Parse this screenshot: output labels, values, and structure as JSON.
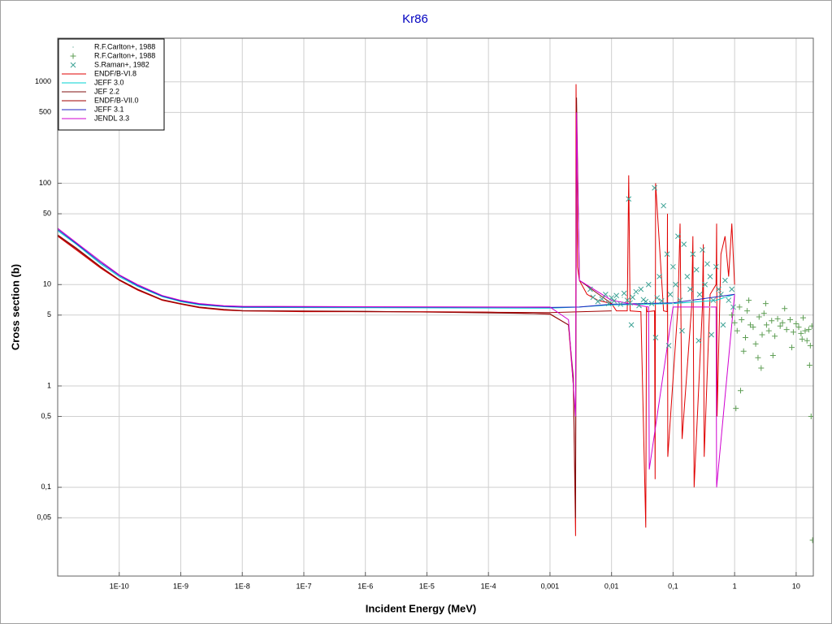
{
  "chart_data": {
    "type": "line",
    "title": "Kr86",
    "x_label": "Incident Energy (MeV)",
    "y_label": "Cross section (b)",
    "xscale": "log",
    "yscale": "log",
    "grid": true,
    "legend": "top-left",
    "xlim": [
      1e-11,
      19
    ],
    "ylim": [
      0.0133,
      2700
    ],
    "xticks": [
      {
        "value": 1e-10,
        "label": "1E-10"
      },
      {
        "value": 1e-09,
        "label": "1E-9"
      },
      {
        "value": 1e-08,
        "label": "1E-8"
      },
      {
        "value": 1e-07,
        "label": "1E-7"
      },
      {
        "value": 1e-06,
        "label": "1E-6"
      },
      {
        "value": 1e-05,
        "label": "1E-5"
      },
      {
        "value": 0.0001,
        "label": "1E-4"
      },
      {
        "value": 0.001,
        "label": "0,001"
      },
      {
        "value": 0.01,
        "label": "0,01"
      },
      {
        "value": 0.1,
        "label": "0,1"
      },
      1,
      10
    ],
    "yticks": [
      {
        "value": 0.05,
        "label": "0,05"
      },
      {
        "value": 0.1,
        "label": "0,1"
      },
      {
        "value": 0.5,
        "label": "0,5"
      },
      1,
      5,
      10,
      50,
      100,
      500,
      1000
    ],
    "series": [
      {
        "name": "R.F.Carlton+, 1988",
        "type": "scatter",
        "marker": "dot",
        "color": "#b8d8d0",
        "x": [
          0.006,
          0.009,
          0.015,
          0.03,
          0.06,
          0.1,
          0.2,
          0.4,
          0.7
        ],
        "values": [
          7,
          6.5,
          7.5,
          6,
          7,
          6.5,
          7,
          6,
          7.5
        ]
      },
      {
        "name": "R.F.Carlton+, 1988",
        "type": "scatter",
        "marker": "plus",
        "color": "#5f9e55",
        "x": [
          0.9,
          1.0,
          1.1,
          1.2,
          1.3,
          1.5,
          1.6,
          1.8,
          2.0,
          2.2,
          2.5,
          2.8,
          3.0,
          3.3,
          3.6,
          4.0,
          4.5,
          5.0,
          5.5,
          6.0,
          7.0,
          8.0,
          9.0,
          10,
          11,
          12,
          13,
          14,
          15,
          16,
          17,
          18,
          1.05,
          1.4,
          1.7,
          2.4,
          3.2,
          4.2,
          6.5,
          8.5,
          12.5,
          16.5,
          17.5,
          18.5,
          1.25,
          2.7
        ],
        "values": [
          5,
          4.2,
          3.5,
          6,
          4.5,
          3,
          5.5,
          4,
          3.8,
          2.6,
          4.8,
          3.2,
          5.2,
          4,
          3.5,
          4.4,
          3.1,
          4.6,
          3.9,
          4.2,
          3.6,
          4.5,
          3.4,
          4.1,
          3.8,
          3.3,
          4.7,
          3.5,
          2.8,
          3.6,
          2.5,
          3.9,
          0.6,
          2.2,
          7,
          1.9,
          6.5,
          2,
          5.8,
          2.4,
          2.9,
          1.6,
          0.5,
          0.03,
          0.9,
          1.5
        ]
      },
      {
        "name": "S.Raman+, 1982",
        "type": "scatter",
        "marker": "x",
        "color": "#3fa396",
        "x": [
          0.0045,
          0.005,
          0.006,
          0.007,
          0.008,
          0.009,
          0.01,
          0.011,
          0.012,
          0.014,
          0.016,
          0.018,
          0.019,
          0.02,
          0.022,
          0.025,
          0.028,
          0.03,
          0.033,
          0.036,
          0.04,
          0.045,
          0.05,
          0.055,
          0.06,
          0.065,
          0.07,
          0.08,
          0.09,
          0.1,
          0.11,
          0.12,
          0.13,
          0.15,
          0.17,
          0.19,
          0.21,
          0.24,
          0.27,
          0.3,
          0.33,
          0.36,
          0.4,
          0.45,
          0.5,
          0.55,
          0.6,
          0.7,
          0.8,
          0.9,
          0.95,
          0.052,
          0.021,
          0.085,
          0.14,
          0.26,
          0.42,
          0.65
        ],
        "values": [
          9,
          7.5,
          6.8,
          7.2,
          8,
          6.5,
          7.4,
          6.9,
          7.8,
          6.4,
          8.2,
          7,
          70,
          6.6,
          7.5,
          8.5,
          6.2,
          9,
          7.1,
          6.8,
          10,
          6.5,
          90,
          7.4,
          12,
          6.9,
          60,
          20,
          8,
          15,
          10,
          30,
          7,
          25,
          12,
          9,
          20,
          14,
          8,
          22,
          10,
          16,
          12,
          7,
          15,
          9,
          8,
          11,
          7,
          9,
          6,
          3,
          4,
          2.5,
          3.5,
          2.8,
          3.2,
          4
        ]
      },
      {
        "name": "ENDF/B-VI.8",
        "type": "line",
        "color": "#e00000",
        "x": [
          1e-11,
          2e-11,
          5e-11,
          1e-10,
          2e-10,
          5e-10,
          1e-09,
          2e-09,
          5e-09,
          1e-08,
          1e-07,
          1e-06,
          1e-05,
          0.0001,
          0.001,
          0.002,
          0.0024,
          0.0026,
          0.00265,
          0.0027,
          0.00275,
          0.0028,
          0.003,
          0.004,
          0.006,
          0.01,
          0.012,
          0.018,
          0.019,
          0.02,
          0.03,
          0.036,
          0.037,
          0.038,
          0.05,
          0.051,
          0.052,
          0.07,
          0.08,
          0.081,
          0.082,
          0.12,
          0.13,
          0.14,
          0.2,
          0.21,
          0.22,
          0.3,
          0.31,
          0.32,
          0.4,
          0.5,
          0.51,
          0.52,
          0.6,
          0.7,
          0.8,
          0.9,
          1
        ],
        "values": [
          30,
          22,
          14.5,
          11,
          8.8,
          7,
          6.4,
          5.9,
          5.6,
          5.5,
          5.4,
          5.4,
          5.4,
          5.35,
          5.1,
          4,
          1,
          0.033,
          950,
          180,
          60,
          15,
          11,
          8,
          7,
          6.5,
          5.5,
          5.5,
          120,
          5.5,
          5.4,
          0.04,
          6,
          5.4,
          5.5,
          0.12,
          100,
          5.5,
          5.4,
          50,
          0.2,
          6,
          40,
          0.3,
          6,
          30,
          0.1,
          6,
          25,
          0.2,
          8,
          10,
          40,
          0.5,
          20,
          30,
          12,
          40,
          10
        ]
      },
      {
        "name": "JEFF 3.0",
        "type": "line",
        "color": "#00d0d0",
        "x": [
          1e-11,
          2e-11,
          5e-11,
          1e-10,
          2e-10,
          5e-10,
          1e-09,
          2e-09,
          5e-09,
          1e-08,
          1e-06,
          0.001,
          0.003,
          0.01,
          0.1,
          0.5,
          1
        ],
        "values": [
          34,
          25,
          16,
          12,
          9.6,
          7.6,
          6.8,
          6.3,
          6.05,
          5.95,
          5.9,
          5.85,
          6,
          6.3,
          6.5,
          7,
          8
        ]
      },
      {
        "name": "JEF 2.2",
        "type": "line",
        "color": "#801010",
        "x": [
          1e-11,
          2e-11,
          5e-11,
          1e-10,
          2e-10,
          5e-10,
          1e-09,
          2e-09,
          5e-09,
          1e-08,
          1e-06,
          0.001,
          0.002,
          0.0024,
          0.0026,
          0.0027,
          0.003,
          0.01
        ],
        "values": [
          31,
          23,
          15,
          11.2,
          9,
          7.1,
          6.5,
          6,
          5.7,
          5.55,
          5.45,
          5.15,
          4,
          1.2,
          0.05,
          700,
          11,
          6.5
        ]
      },
      {
        "name": "ENDF/B-VII.0",
        "type": "line",
        "color": "#a00000",
        "x": [
          1e-11,
          2e-11,
          5e-11,
          1e-10,
          2e-10,
          5e-10,
          1e-09,
          2e-09,
          5e-09,
          1e-08,
          1e-06,
          0.001,
          0.01
        ],
        "values": [
          30.5,
          22.5,
          14.8,
          11.1,
          8.9,
          7.05,
          6.45,
          5.95,
          5.65,
          5.5,
          5.4,
          5.3,
          5.5
        ]
      },
      {
        "name": "JEFF 3.1",
        "type": "line",
        "color": "#2020c0",
        "x": [
          1e-11,
          2e-11,
          5e-11,
          1e-10,
          2e-10,
          5e-10,
          1e-09,
          2e-09,
          5e-09,
          1e-08,
          1e-06,
          0.001,
          0.003,
          0.01,
          0.1,
          1
        ],
        "values": [
          35,
          25.5,
          16.5,
          12.3,
          9.8,
          7.7,
          6.9,
          6.4,
          6.1,
          6,
          6,
          5.95,
          6,
          6.4,
          6.6,
          8
        ]
      },
      {
        "name": "JENDL 3.3",
        "type": "line",
        "color": "#d000d0",
        "x": [
          1e-11,
          2e-11,
          5e-11,
          1e-10,
          2e-10,
          5e-10,
          1e-09,
          2e-09,
          5e-09,
          1e-08,
          1e-06,
          0.001,
          0.002,
          0.0024,
          0.0026,
          0.0027,
          0.003,
          0.01,
          0.04,
          0.041,
          0.1,
          0.5,
          0.51,
          1
        ],
        "values": [
          36,
          26,
          17,
          12.5,
          10,
          7.8,
          7,
          6.5,
          6.2,
          6.1,
          6.05,
          6,
          4.5,
          1,
          0.5,
          500,
          11,
          7,
          6,
          0.15,
          6,
          6,
          0.1,
          8
        ]
      }
    ]
  }
}
